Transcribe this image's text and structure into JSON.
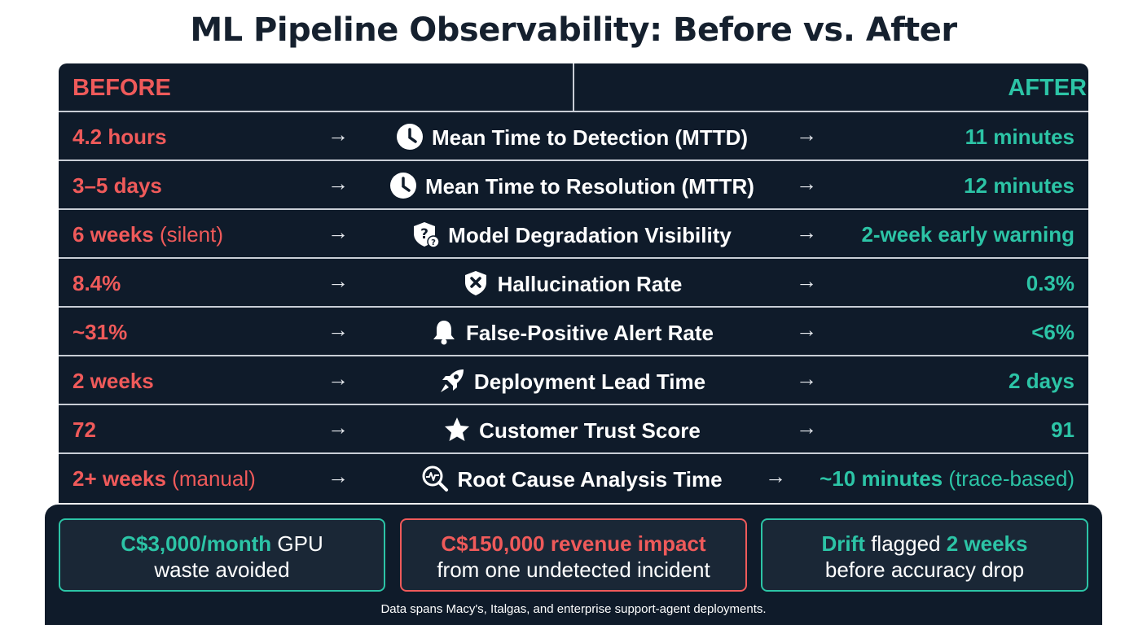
{
  "title": "ML Pipeline Observability: Before vs. After",
  "header": {
    "before": "BEFORE",
    "after": "AFTER"
  },
  "arrow": "→",
  "rows": [
    {
      "before": "4.2 hours",
      "before_note": "",
      "icon": "clock-icon",
      "metric": "Mean Time to Detection (MTTD)",
      "after": "11 minutes",
      "after_note": ""
    },
    {
      "before": "3–5 days",
      "before_note": "",
      "icon": "clock-icon",
      "metric": "Mean Time to Resolution (MTTR)",
      "after": "12 minutes",
      "after_note": ""
    },
    {
      "before": "6 weeks",
      "before_note": "(silent)",
      "icon": "shield-question-icon",
      "metric": "Model Degradation Visibility",
      "after": "2-week early warning",
      "after_note": ""
    },
    {
      "before": "8.4%",
      "before_note": "",
      "icon": "shield-x-icon",
      "metric": "Hallucination Rate",
      "after": "0.3%",
      "after_note": ""
    },
    {
      "before": "~31%",
      "before_note": "",
      "icon": "bell-icon",
      "metric": "False-Positive Alert Rate",
      "after": "<6%",
      "after_note": ""
    },
    {
      "before": "2 weeks",
      "before_note": "",
      "icon": "rocket-icon",
      "metric": "Deployment Lead Time",
      "after": "2 days",
      "after_note": ""
    },
    {
      "before": "72",
      "before_note": "",
      "icon": "star-icon",
      "metric": "Customer Trust Score",
      "after": "91",
      "after_note": ""
    },
    {
      "before": "2+ weeks",
      "before_note": "(manual)",
      "icon": "search-pulse-icon",
      "metric": "Root Cause Analysis Time",
      "after": "~10 minutes",
      "after_note": "(trace-based)"
    }
  ],
  "cards": [
    {
      "highlight": "C$3,000/month",
      "text1": " GPU",
      "line2": "waste avoided"
    },
    {
      "highlight": "C$150,000 revenue impact",
      "text1": "",
      "line2": "from one undetected incident"
    },
    {
      "highlight": "Drift",
      "text1": " flagged ",
      "highlight2": "2 weeks",
      "line2": "before accuracy drop"
    }
  ],
  "footnote": "Data spans Macy's, Italgas, and enterprise support-agent deployments.",
  "colors": {
    "before": "#ef5a5a",
    "after": "#2cc4a6",
    "panel": "#0f1b2a"
  }
}
